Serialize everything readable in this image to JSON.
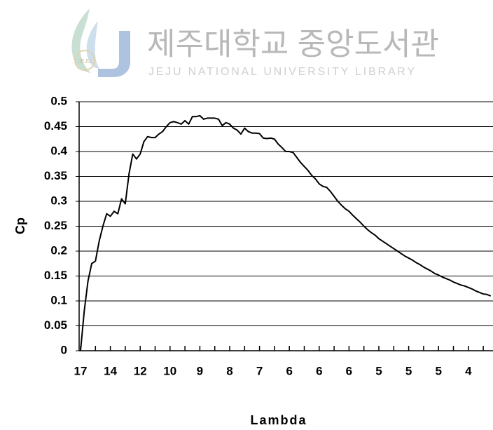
{
  "watermark": {
    "title": "제주대학교 중앙도서관",
    "subtitle": "JEJU NATIONAL UNIVERSITY LIBRARY",
    "logo_text": "JEJU"
  },
  "chart_data": {
    "type": "line",
    "y_label": "Cp",
    "x_label": "Lambda",
    "categories": [
      "17",
      null,
      null,
      null,
      null,
      null,
      null,
      null,
      "14",
      null,
      null,
      null,
      null,
      null,
      null,
      null,
      "12",
      null,
      null,
      null,
      null,
      null,
      null,
      null,
      "10",
      null,
      null,
      null,
      null,
      null,
      null,
      null,
      "9",
      null,
      null,
      null,
      null,
      null,
      null,
      null,
      "8",
      null,
      null,
      null,
      null,
      null,
      null,
      null,
      "7",
      null,
      null,
      null,
      null,
      null,
      null,
      null,
      "6",
      null,
      null,
      null,
      null,
      null,
      null,
      null,
      "6",
      null,
      null,
      null,
      null,
      null,
      null,
      null,
      "6",
      null,
      null,
      null,
      null,
      null,
      null,
      null,
      "5",
      null,
      null,
      null,
      null,
      null,
      null,
      null,
      "5",
      null,
      null,
      null,
      null,
      null,
      null,
      null,
      "5",
      null,
      null,
      null,
      null,
      null,
      null,
      null,
      "4",
      null,
      null,
      null,
      null,
      null,
      null
    ],
    "series": [
      {
        "name": "Cp",
        "color": "#000000",
        "values": [
          0,
          0.08,
          0.14,
          0.175,
          0.18,
          0.22,
          0.25,
          0.275,
          0.27,
          0.28,
          0.275,
          0.305,
          0.295,
          0.355,
          0.395,
          0.385,
          0.395,
          0.42,
          0.43,
          0.428,
          0.428,
          0.435,
          0.44,
          0.45,
          0.458,
          0.46,
          0.458,
          0.455,
          0.462,
          0.455,
          0.47,
          0.47,
          0.472,
          0.465,
          0.467,
          0.467,
          0.467,
          0.465,
          0.452,
          0.458,
          0.455,
          0.447,
          0.443,
          0.435,
          0.447,
          0.44,
          0.437,
          0.437,
          0.436,
          0.427,
          0.426,
          0.427,
          0.425,
          0.415,
          0.408,
          0.4,
          0.4,
          0.398,
          0.388,
          0.378,
          0.37,
          0.362,
          0.352,
          0.345,
          0.335,
          0.33,
          0.328,
          0.32,
          0.31,
          0.3,
          0.292,
          0.285,
          0.28,
          0.272,
          0.265,
          0.258,
          0.25,
          0.243,
          0.237,
          0.232,
          0.225,
          0.22,
          0.215,
          0.21,
          0.205,
          0.2,
          0.195,
          0.19,
          0.186,
          0.182,
          0.177,
          0.173,
          0.168,
          0.164,
          0.16,
          0.155,
          0.152,
          0.148,
          0.145,
          0.142,
          0.138,
          0.135,
          0.132,
          0.13,
          0.127,
          0.124,
          0.12,
          0.117,
          0.114,
          0.113,
          0.11
        ]
      }
    ],
    "ylim": [
      0,
      0.5
    ],
    "yticks": [
      0,
      0.05,
      0.1,
      0.15,
      0.2,
      0.25,
      0.3,
      0.35,
      0.4,
      0.45,
      0.5
    ],
    "grid": true
  }
}
